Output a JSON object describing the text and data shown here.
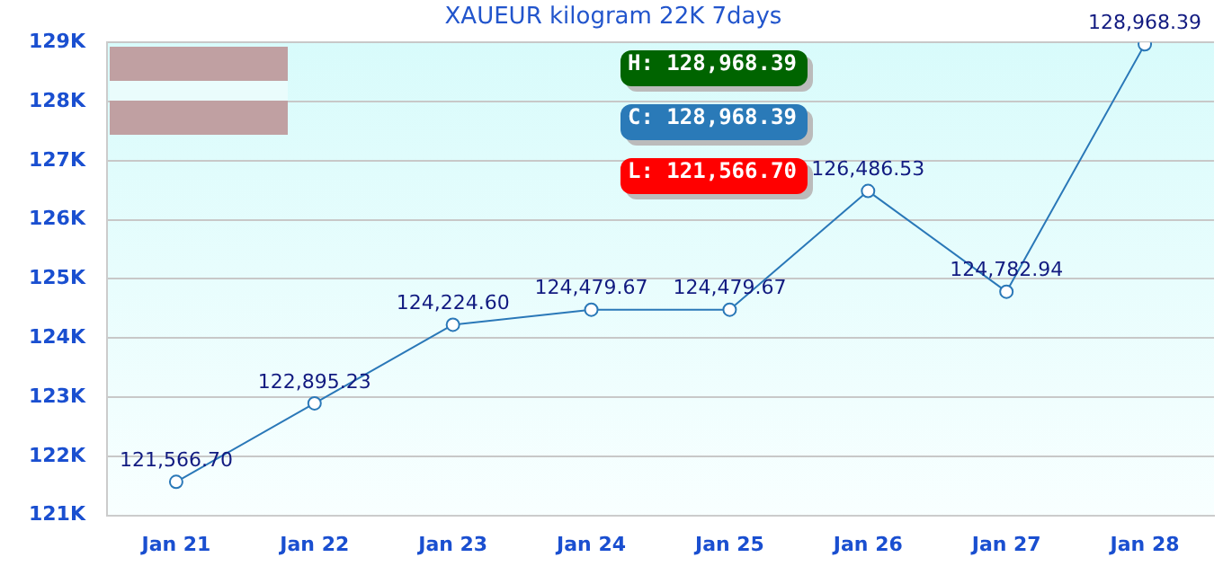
{
  "chart_data": {
    "type": "line",
    "title": "XAUEUR kilogram 22K 7days",
    "categories": [
      "Jan 21",
      "Jan 22",
      "Jan 23",
      "Jan 24",
      "Jan 25",
      "Jan 26",
      "Jan 27",
      "Jan 28"
    ],
    "series": [
      {
        "color": "#2a78b8",
        "values": [
          121566.7,
          122895.23,
          124224.6,
          124479.67,
          124479.67,
          126486.53,
          124782.94,
          128968.39
        ],
        "value_labels": [
          "121,566.70",
          "122,895.23",
          "124,224.60",
          "124,479.67",
          "124,479.67",
          "126,486.53",
          "124,782.94",
          "128,968.39"
        ]
      }
    ],
    "ylim": [
      121000,
      129000
    ],
    "yticks": [
      {
        "value": 121000,
        "label": "121K"
      },
      {
        "value": 122000,
        "label": "122K"
      },
      {
        "value": 123000,
        "label": "123K"
      },
      {
        "value": 124000,
        "label": "124K"
      },
      {
        "value": 125000,
        "label": "125K"
      },
      {
        "value": 126000,
        "label": "126K"
      },
      {
        "value": 127000,
        "label": "127K"
      },
      {
        "value": 128000,
        "label": "128K"
      },
      {
        "value": 129000,
        "label": "129K"
      }
    ],
    "annotations": [
      "H: 128,968.39",
      "C: 128,968.39",
      "L: 121,566.70"
    ],
    "grid": "y",
    "legend": false,
    "marker": "circle",
    "line_style": "solid"
  }
}
